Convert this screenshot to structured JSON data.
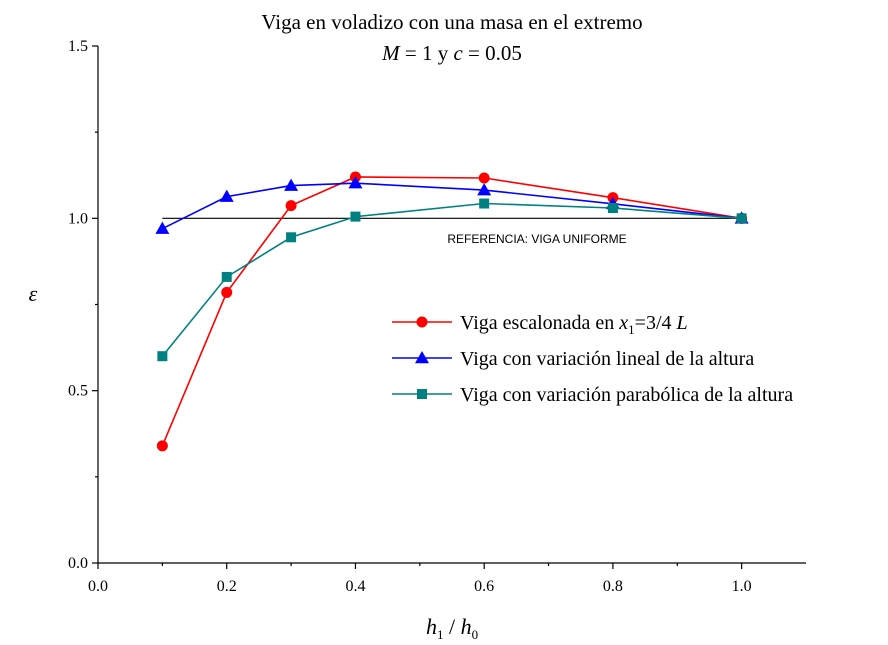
{
  "chart_data": {
    "type": "line",
    "title": "Viga en voladizo con una masa en el extremo",
    "subtitle": {
      "m_symbol": "M",
      "m_value": " = 1 y ",
      "c_symbol": "c",
      "c_value": " = 0.05"
    },
    "xlabel": {
      "numerator": "h",
      "numerator_sub": "1",
      "separator": " / ",
      "denominator": "h",
      "denominator_sub": "0"
    },
    "ylabel": "ε",
    "xlim": [
      0.0,
      1.1
    ],
    "ylim": [
      0.0,
      1.5
    ],
    "xticks": [
      "0.0",
      "0.2",
      "0.4",
      "0.6",
      "0.8",
      "1.0"
    ],
    "yticks": [
      "0.0",
      "0.5",
      "1.0",
      "1.5"
    ],
    "grid": false,
    "legend_position": "right",
    "reference": {
      "label": "REFERENCIA: VIGA UNIFORME",
      "y": 1.0,
      "x_range": [
        0.1,
        1.0
      ],
      "color": "#000000"
    },
    "series": [
      {
        "name_prefix": "Viga escalonada en ",
        "name_var": "x",
        "name_sub": "1",
        "name_suffix": "=3/4 ",
        "name_end": "L",
        "marker": "circle",
        "color": "#ff0000",
        "x": [
          0.1,
          0.2,
          0.3,
          0.4,
          0.6,
          0.8,
          1.0
        ],
        "y": [
          0.34,
          0.785,
          1.037,
          1.12,
          1.117,
          1.06,
          1.0
        ]
      },
      {
        "name": "Viga con variación lineal de la altura",
        "marker": "triangle",
        "color": "#0000ff",
        "x": [
          0.1,
          0.2,
          0.3,
          0.4,
          0.6,
          0.8,
          1.0
        ],
        "y": [
          0.97,
          1.063,
          1.095,
          1.102,
          1.082,
          1.042,
          1.0
        ]
      },
      {
        "name": "Viga con variación parabólica de la altura",
        "marker": "square",
        "color": "#008080",
        "x": [
          0.1,
          0.2,
          0.3,
          0.4,
          0.6,
          0.8,
          1.0
        ],
        "y": [
          0.6,
          0.83,
          0.945,
          1.005,
          1.043,
          1.03,
          1.0
        ]
      }
    ]
  }
}
